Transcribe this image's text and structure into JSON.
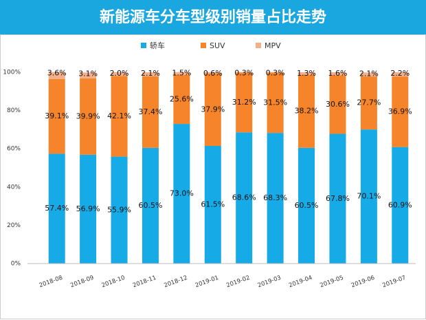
{
  "chart_data": {
    "type": "stacked-bar",
    "title": "新能源车分车型级别销量占比走势",
    "categories": [
      "2018-08",
      "2018-09",
      "2018-10",
      "2018-11",
      "2018-12",
      "2019-01",
      "2019-02",
      "2019-03",
      "2019-04",
      "2019-05",
      "2019-06",
      "2019-07"
    ],
    "series": [
      {
        "name": "轿车",
        "color": "#16aae6",
        "values": [
          57.4,
          56.9,
          55.9,
          60.5,
          73.0,
          61.5,
          68.6,
          68.3,
          60.5,
          67.8,
          70.1,
          60.9
        ],
        "value_labels": [
          "57.4%",
          "56.9%",
          "55.9%",
          "60.5%",
          "73.0%",
          "61.5%",
          "68.6%",
          "68.3%",
          "60.5%",
          "67.8%",
          "70.1%",
          "60.9%"
        ]
      },
      {
        "name": "SUV",
        "color": "#f5842a",
        "values": [
          39.1,
          39.9,
          42.1,
          37.4,
          25.6,
          37.9,
          31.2,
          31.5,
          38.2,
          30.6,
          27.7,
          36.9
        ],
        "value_labels": [
          "39.1%",
          "39.9%",
          "42.1%",
          "37.4%",
          "25.6%",
          "37.9%",
          "31.2%",
          "31.5%",
          "38.2%",
          "30.6%",
          "27.7%",
          "36.9%"
        ]
      },
      {
        "name": "MPV",
        "color": "#f3b08a",
        "values": [
          3.6,
          3.1,
          2.0,
          2.1,
          1.5,
          0.6,
          0.3,
          0.3,
          1.3,
          1.6,
          2.1,
          2.2
        ],
        "value_labels": [
          "3.6%",
          "3.1%",
          "2.0%",
          "2.1%",
          "1.5%",
          "0.6%",
          "0.3%",
          "0.3%",
          "1.3%",
          "1.6%",
          "2.1%",
          "2.2%"
        ]
      }
    ],
    "ylim": [
      0,
      100
    ],
    "yticks": [
      {
        "value": 0,
        "label": "0%"
      },
      {
        "value": 20,
        "label": "20%"
      },
      {
        "value": 40,
        "label": "40%"
      },
      {
        "value": 60,
        "label": "60%"
      },
      {
        "value": 80,
        "label": "80%"
      },
      {
        "value": 100,
        "label": "100%"
      }
    ],
    "grid": false
  }
}
